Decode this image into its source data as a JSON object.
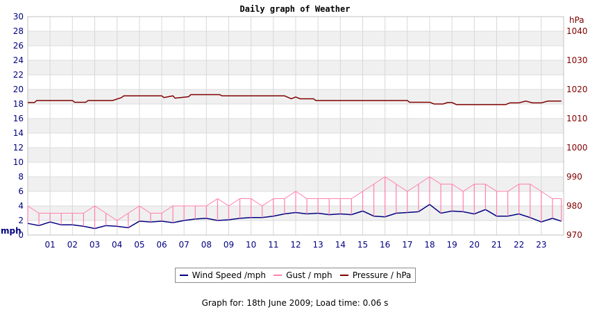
{
  "chart_data": {
    "type": "line",
    "title": "Daily graph of Weather",
    "left_axis": {
      "label": "mph",
      "ylim": [
        0,
        30
      ],
      "ticks": [
        0,
        2,
        4,
        6,
        8,
        10,
        12,
        14,
        16,
        18,
        20,
        22,
        24,
        26,
        28,
        30
      ],
      "color": "#000080"
    },
    "right_axis": {
      "label": "hPa",
      "ylim": [
        970,
        1045
      ],
      "ticks": [
        970,
        980,
        990,
        1000,
        1010,
        1020,
        1030,
        1040
      ],
      "color": "#800000"
    },
    "xlim": [
      0,
      24
    ],
    "x_ticks": [
      "01",
      "02",
      "03",
      "04",
      "05",
      "06",
      "07",
      "08",
      "09",
      "10",
      "11",
      "12",
      "13",
      "14",
      "15",
      "16",
      "17",
      "18",
      "19",
      "20",
      "21",
      "22",
      "23"
    ],
    "grid": true,
    "legend_position": "bottom",
    "series": [
      {
        "name": "Wind Speed /mph",
        "axis": "left",
        "color": "#000080",
        "x": [
          0,
          0.5,
          1,
          1.5,
          2,
          2.5,
          3,
          3.5,
          4,
          4.5,
          5,
          5.5,
          6,
          6.5,
          7,
          7.5,
          8,
          8.5,
          9,
          9.5,
          10,
          10.5,
          11,
          11.5,
          12,
          12.5,
          13,
          13.5,
          14,
          14.5,
          15,
          15.5,
          16,
          16.5,
          17,
          17.5,
          18,
          18.5,
          19,
          19.5,
          20,
          20.5,
          21,
          21.5,
          22,
          22.5,
          23,
          23.5,
          23.9
        ],
        "values": [
          1.6,
          1.3,
          1.8,
          1.4,
          1.4,
          1.2,
          0.9,
          1.3,
          1.2,
          1.0,
          1.9,
          1.8,
          1.9,
          1.7,
          2.0,
          2.2,
          2.3,
          2.0,
          2.1,
          2.3,
          2.4,
          2.4,
          2.6,
          2.9,
          3.1,
          2.9,
          3.0,
          2.8,
          2.9,
          2.8,
          3.3,
          2.6,
          2.5,
          3.0,
          3.1,
          3.2,
          4.2,
          3.0,
          3.3,
          3.2,
          2.9,
          3.5,
          2.6,
          2.6,
          2.9,
          2.4,
          1.8,
          2.3,
          1.9
        ]
      },
      {
        "name": "Gust / mph",
        "axis": "left",
        "color": "#ff80b0",
        "x": [
          0,
          0.5,
          1,
          1.5,
          2,
          2.5,
          3,
          3.5,
          4,
          4.5,
          5,
          5.5,
          6,
          6.5,
          7,
          7.5,
          8,
          8.5,
          9,
          9.5,
          10,
          10.5,
          11,
          11.5,
          12,
          12.5,
          13,
          13.5,
          14,
          14.5,
          15,
          15.5,
          16,
          16.5,
          17,
          17.5,
          18,
          18.5,
          19,
          19.5,
          20,
          20.5,
          21,
          21.5,
          22,
          22.5,
          23,
          23.5,
          23.9
        ],
        "values": [
          4,
          3,
          3,
          3,
          3,
          3,
          4,
          3,
          2,
          3,
          4,
          3,
          3,
          4,
          4,
          4,
          4,
          5,
          4,
          5,
          5,
          4,
          5,
          5,
          6,
          5,
          5,
          5,
          5,
          5,
          6,
          7,
          8,
          7,
          6,
          7,
          8,
          7,
          7,
          6,
          7,
          7,
          6,
          6,
          7,
          7,
          6,
          5,
          5
        ]
      },
      {
        "name": "Pressure / hPa",
        "axis": "right",
        "color": "#800000",
        "x": [
          0,
          0.3,
          0.4,
          2,
          2.1,
          2.6,
          2.7,
          3.8,
          4.2,
          4.3,
          5,
          6,
          6.1,
          6.5,
          6.6,
          7.2,
          7.3,
          8.6,
          8.7,
          10,
          10.5,
          11.5,
          11.8,
          12,
          12.2,
          12.8,
          12.9,
          14,
          15,
          16,
          16.5,
          17,
          17.1,
          18,
          18.2,
          18.6,
          18.8,
          19,
          19.2,
          20,
          21,
          21.4,
          21.6,
          22,
          22.3,
          22.6,
          22.8,
          23,
          23.3,
          23.6,
          23.9
        ],
        "values": [
          1015.5,
          1015.5,
          1016.2,
          1016.2,
          1015.6,
          1015.6,
          1016.2,
          1016.2,
          1017.2,
          1017.8,
          1017.8,
          1017.8,
          1017.2,
          1017.8,
          1017.0,
          1017.5,
          1018.2,
          1018.2,
          1017.8,
          1017.8,
          1017.8,
          1017.8,
          1016.8,
          1017.4,
          1016.8,
          1016.8,
          1016.2,
          1016.2,
          1016.2,
          1016.2,
          1016.2,
          1016.2,
          1015.6,
          1015.6,
          1015.0,
          1015.0,
          1015.5,
          1015.5,
          1014.8,
          1014.8,
          1014.8,
          1014.8,
          1015.4,
          1015.4,
          1016.0,
          1015.4,
          1015.4,
          1015.4,
          1016.0,
          1016.0,
          1016.0
        ]
      }
    ]
  },
  "legend": {
    "items": [
      {
        "label": "Wind Speed /mph",
        "color": "#000080"
      },
      {
        "label": "Gust / mph",
        "color": "#ff80b0"
      },
      {
        "label": "Pressure / hPa",
        "color": "#800000"
      }
    ]
  },
  "footer": {
    "text": "Graph for: 18th June 2009; Load time: 0.06 s"
  }
}
